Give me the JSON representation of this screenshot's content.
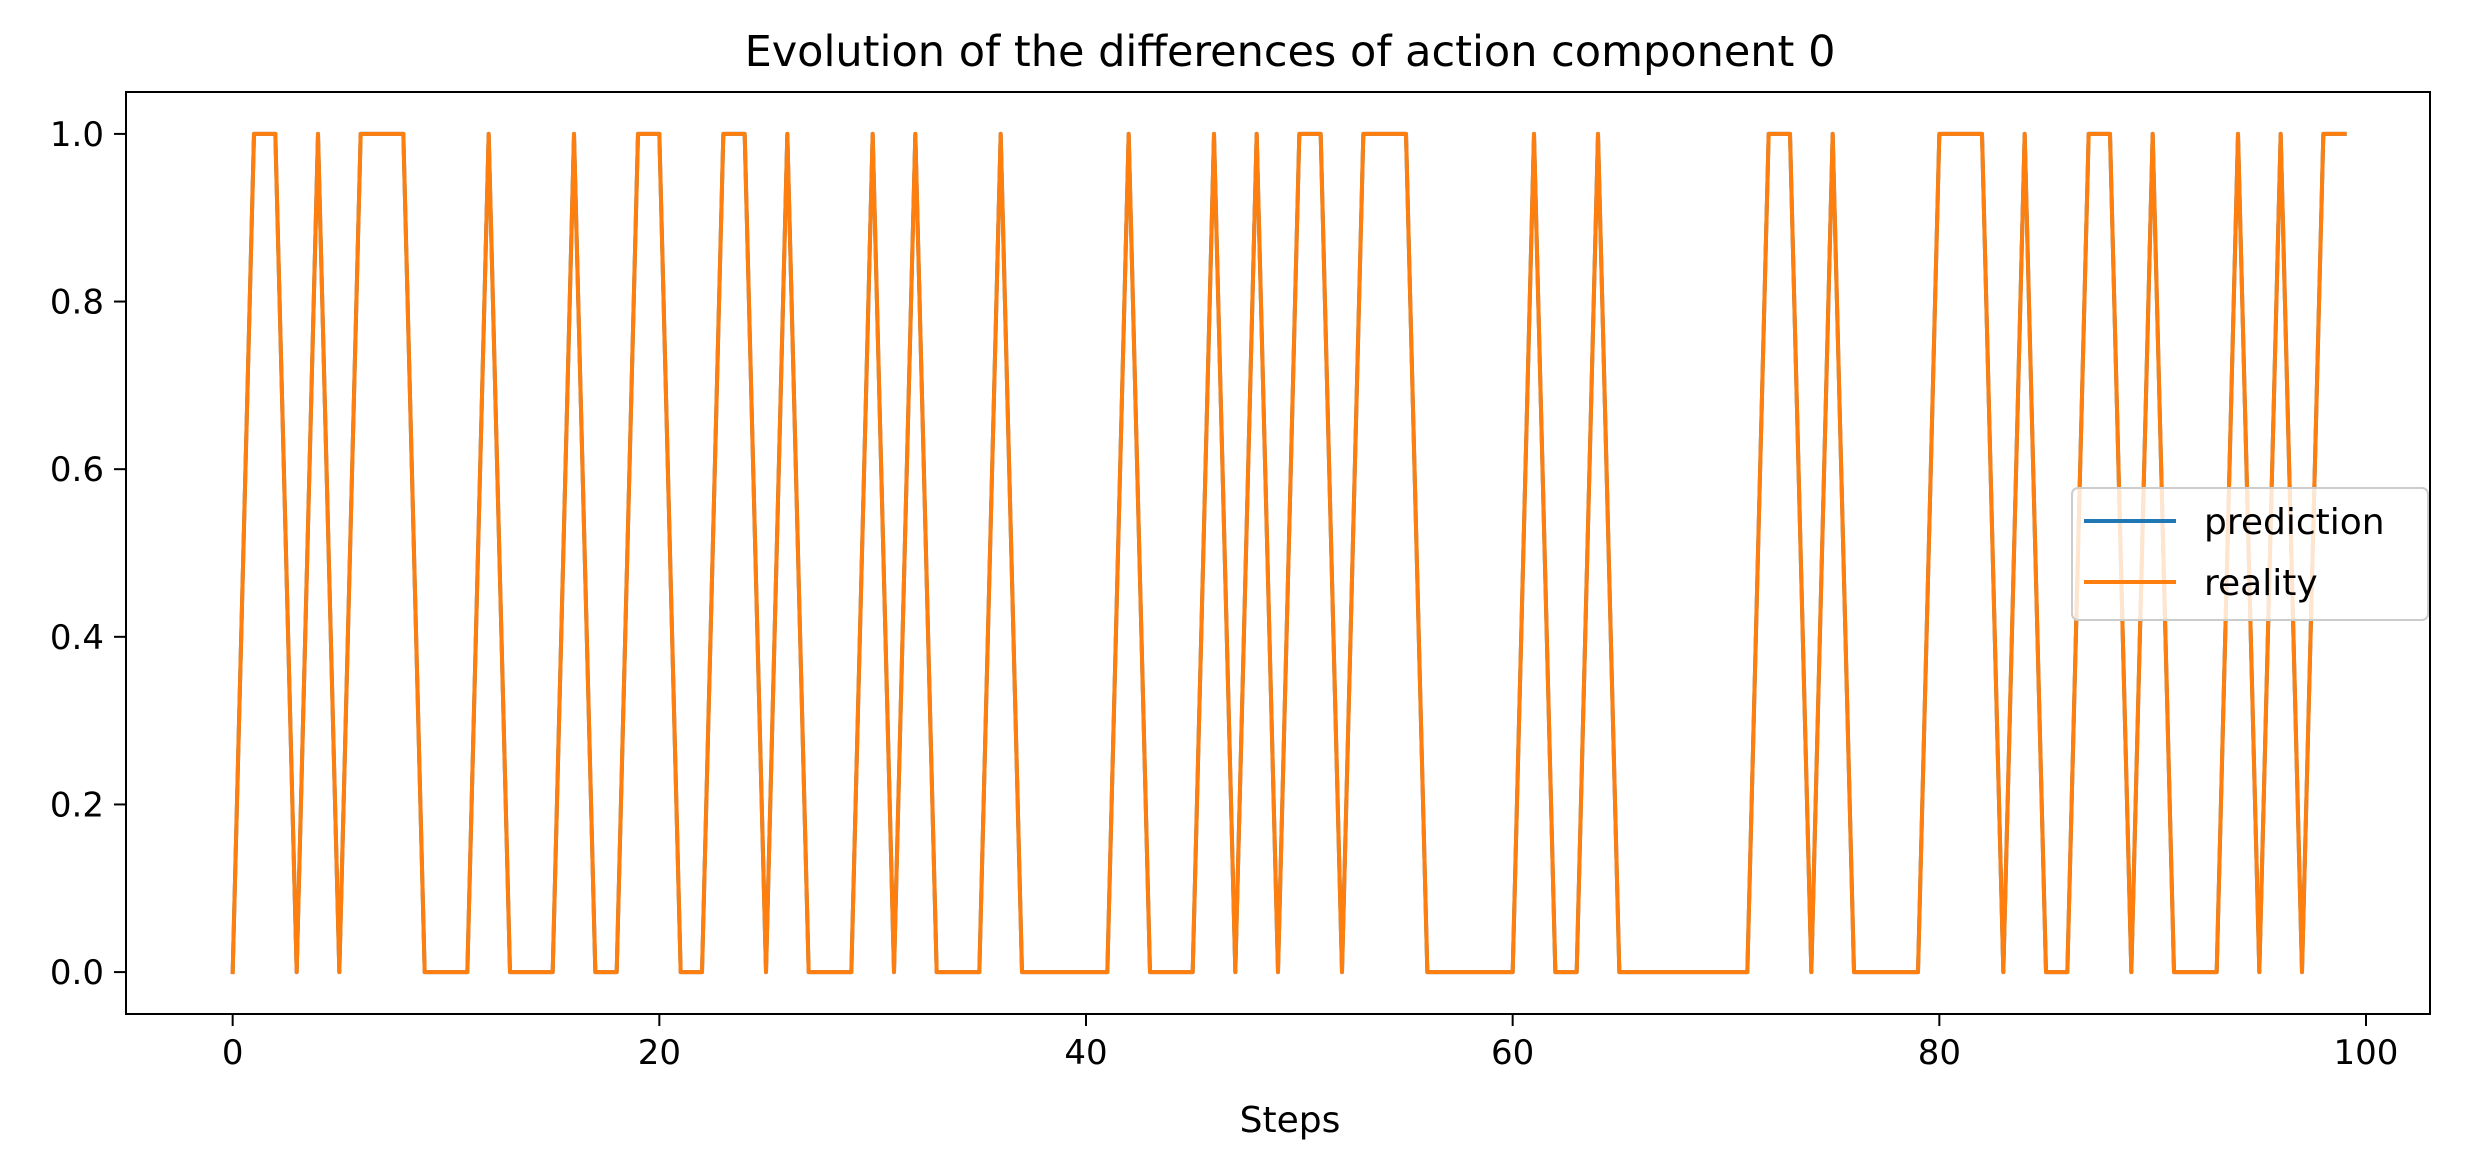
{
  "chart_data": {
    "type": "line",
    "title": "Evolution of the differences of action component 0",
    "xlabel": "Steps",
    "ylabel": "",
    "xlim": [
      -5,
      103
    ],
    "ylim": [
      -0.05,
      1.05
    ],
    "xticks": [
      0,
      20,
      40,
      60,
      80,
      100
    ],
    "xtick_labels": [
      "0",
      "20",
      "40",
      "60",
      "80",
      "100"
    ],
    "yticks": [
      0.0,
      0.2,
      0.4,
      0.6,
      0.8,
      1.0
    ],
    "ytick_labels": [
      "0.0",
      "0.2",
      "0.4",
      "0.6",
      "0.8",
      "1.0"
    ],
    "grid": false,
    "legend_position": "center-right",
    "x": [
      0,
      1,
      2,
      3,
      4,
      5,
      6,
      7,
      8,
      9,
      10,
      11,
      12,
      13,
      14,
      15,
      16,
      17,
      18,
      19,
      20,
      21,
      22,
      23,
      24,
      25,
      26,
      27,
      28,
      29,
      30,
      31,
      32,
      33,
      34,
      35,
      36,
      37,
      38,
      39,
      40,
      41,
      42,
      43,
      44,
      45,
      46,
      47,
      48,
      49,
      50,
      51,
      52,
      53,
      54,
      55,
      56,
      57,
      58,
      59,
      60,
      61,
      62,
      63,
      64,
      65,
      66,
      67,
      68,
      69,
      70,
      71,
      72,
      73,
      74,
      75,
      76,
      77,
      78,
      79,
      80,
      81,
      82,
      83,
      84,
      85,
      86,
      87,
      88,
      89,
      90,
      91,
      92,
      93,
      94,
      95,
      96,
      97,
      98,
      99
    ],
    "series": [
      {
        "name": "prediction",
        "color": "#1f77b4",
        "values": [
          0,
          1,
          1,
          0,
          1,
          0,
          1,
          1,
          1,
          0,
          0,
          0,
          1,
          0,
          0,
          0,
          1,
          0,
          0,
          1,
          1,
          0,
          0,
          1,
          1,
          0,
          1,
          0,
          0,
          0,
          1,
          0,
          1,
          0,
          0,
          0,
          1,
          0,
          0,
          0,
          0,
          0,
          1,
          0,
          0,
          0,
          1,
          0,
          1,
          0,
          1,
          1,
          0,
          1,
          1,
          1,
          0,
          0,
          0,
          0,
          0,
          1,
          0,
          0,
          1,
          0,
          0,
          0,
          0,
          0,
          0,
          0,
          1,
          1,
          0,
          1,
          0,
          0,
          0,
          0,
          1,
          1,
          1,
          0,
          1,
          0,
          0,
          1,
          1,
          0,
          1,
          0,
          0,
          0,
          1,
          0,
          1,
          0,
          1,
          1
        ]
      },
      {
        "name": "reality",
        "color": "#ff7f0e",
        "values": [
          0,
          1,
          1,
          0,
          1,
          0,
          1,
          1,
          1,
          0,
          0,
          0,
          1,
          0,
          0,
          0,
          1,
          0,
          0,
          1,
          1,
          0,
          0,
          1,
          1,
          0,
          1,
          0,
          0,
          0,
          1,
          0,
          1,
          0,
          0,
          0,
          1,
          0,
          0,
          0,
          0,
          0,
          1,
          0,
          0,
          0,
          1,
          0,
          1,
          0,
          1,
          1,
          0,
          1,
          1,
          1,
          0,
          0,
          0,
          0,
          0,
          1,
          0,
          0,
          1,
          0,
          0,
          0,
          0,
          0,
          0,
          0,
          1,
          1,
          0,
          1,
          0,
          0,
          0,
          0,
          1,
          1,
          1,
          0,
          1,
          0,
          0,
          1,
          1,
          0,
          1,
          0,
          0,
          0,
          1,
          0,
          1,
          0,
          1,
          1
        ]
      }
    ]
  }
}
